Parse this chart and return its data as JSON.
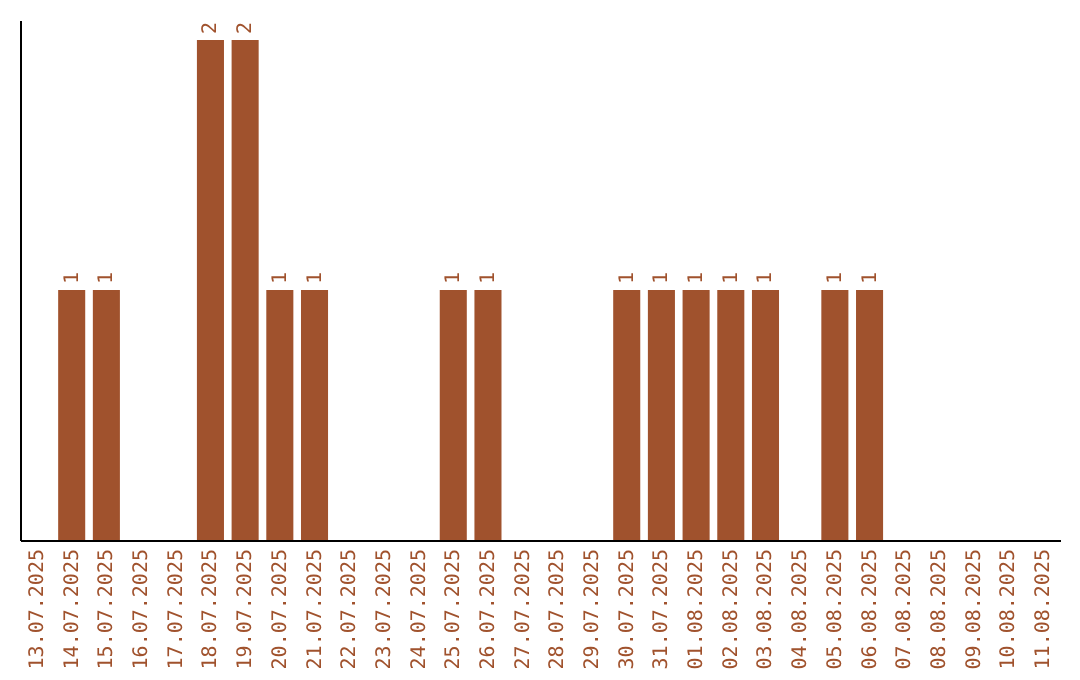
{
  "chart_data": {
    "type": "bar",
    "tick_labels": "x",
    "ylim": [
      0,
      2.08
    ],
    "color": "#a0522d",
    "categories": [
      "13.07.2025",
      "14.07.2025",
      "15.07.2025",
      "16.07.2025",
      "17.07.2025",
      "18.07.2025",
      "19.07.2025",
      "20.07.2025",
      "21.07.2025",
      "22.07.2025",
      "23.07.2025",
      "24.07.2025",
      "25.07.2025",
      "26.07.2025",
      "27.07.2025",
      "28.07.2025",
      "29.07.2025",
      "30.07.2025",
      "31.07.2025",
      "01.08.2025",
      "02.08.2025",
      "03.08.2025",
      "04.08.2025",
      "05.08.2025",
      "06.08.2025",
      "07.08.2025",
      "08.08.2025",
      "09.08.2025",
      "10.08.2025",
      "11.08.2025"
    ],
    "values": [
      0,
      1,
      1,
      0,
      0,
      2,
      2,
      1,
      1,
      0,
      0,
      0,
      1,
      1,
      0,
      0,
      0,
      1,
      1,
      1,
      1,
      1,
      0,
      1,
      1,
      0,
      0,
      0,
      0,
      0
    ],
    "value_labels": [
      null,
      "1",
      "1",
      null,
      null,
      "2",
      "2",
      "1",
      "1",
      null,
      null,
      null,
      "1",
      "1",
      null,
      null,
      null,
      "1",
      "1",
      "1",
      "1",
      "1",
      null,
      "1",
      "1",
      null,
      null,
      null,
      null,
      null
    ]
  }
}
